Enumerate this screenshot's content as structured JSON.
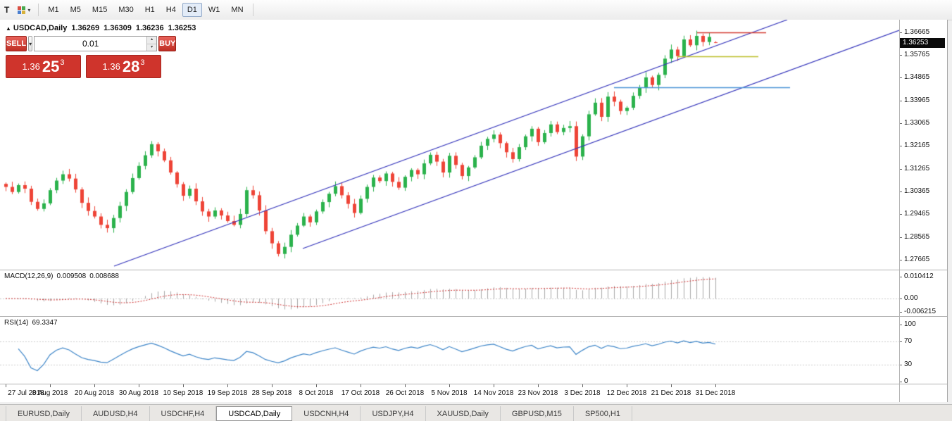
{
  "toolbar": {
    "left_button": "T",
    "timeframes": [
      "M1",
      "M5",
      "M15",
      "M30",
      "H1",
      "H4",
      "D1",
      "W1",
      "MN"
    ],
    "active_timeframe": "D1"
  },
  "chart": {
    "marker": "▲",
    "symbol": "USDCAD,Daily",
    "ohlc": {
      "open": "1.36269",
      "high": "1.36309",
      "low": "1.36236",
      "close": "1.36253"
    }
  },
  "trade_panel": {
    "sell_label": "SELL",
    "buy_label": "BUY",
    "volume": "0.01",
    "sell_price_main": "1.36",
    "sell_price_pips": "25",
    "sell_price_sup": "3",
    "buy_price_main": "1.36",
    "buy_price_pips": "28",
    "buy_price_sup": "3"
  },
  "chart_data": {
    "type": "candlestick",
    "title": "USDCAD,Daily",
    "current_price": "1.36253",
    "price_range": [
      1.2728,
      1.3716
    ],
    "wick": 0.0016,
    "x_labels": [
      "27 Jul 2018",
      "8 Aug 2018",
      "20 Aug 2018",
      "30 Aug 2018",
      "10 Sep 2018",
      "19 Sep 2018",
      "28 Sep 2018",
      "8 Oct 2018",
      "17 Oct 2018",
      "26 Oct 2018",
      "5 Nov 2018",
      "14 Nov 2018",
      "23 Nov 2018",
      "3 Dec 2018",
      "12 Dec 2018",
      "21 Dec 2018",
      "31 Dec 2018"
    ],
    "label_step": 7,
    "closes": [
      1.3055,
      1.3035,
      1.3062,
      1.3048,
      1.2996,
      1.2968,
      1.299,
      1.3042,
      1.308,
      1.3105,
      1.3088,
      1.3045,
      1.2992,
      1.296,
      1.2938,
      1.2905,
      1.2892,
      1.2932,
      1.298,
      1.3035,
      1.309,
      1.3138,
      1.318,
      1.3224,
      1.3196,
      1.316,
      1.3112,
      1.3066,
      1.302,
      1.3048,
      1.2998,
      1.2958,
      1.2938,
      1.2962,
      1.2942,
      1.292,
      1.2905,
      1.2948,
      1.3042,
      1.3022,
      1.2962,
      1.288,
      1.2832,
      1.279,
      1.2818,
      1.2866,
      1.2902,
      1.2938,
      1.2915,
      1.2958,
      1.2995,
      1.3028,
      1.3058,
      1.3022,
      1.2988,
      1.2952,
      1.3008,
      1.3055,
      1.3092,
      1.3078,
      1.3108,
      1.3075,
      1.3052,
      1.3095,
      1.3122,
      1.3105,
      1.3148,
      1.3182,
      1.3155,
      1.3112,
      1.3178,
      1.3142,
      1.3098,
      1.3132,
      1.3172,
      1.3218,
      1.3245,
      1.3262,
      1.3228,
      1.3192,
      1.3165,
      1.3212,
      1.3255,
      1.3285,
      1.3232,
      1.3268,
      1.3302,
      1.3272,
      1.3288,
      1.3295,
      1.3175,
      1.3255,
      1.3342,
      1.3388,
      1.3332,
      1.3412,
      1.3392,
      1.3355,
      1.3368,
      1.3415,
      1.3448,
      1.3488,
      1.3458,
      1.3498,
      1.3562,
      1.3598,
      1.3572,
      1.3638,
      1.3615,
      1.3652,
      1.3628,
      1.3648,
      1.36253
    ],
    "y_ticks": [
      "1.36665",
      "1.35765",
      "1.34865",
      "1.33965",
      "1.33065",
      "1.32165",
      "1.31265",
      "1.30365",
      "1.29465",
      "1.28565",
      "1.27665"
    ],
    "overlays": {
      "channel_lines": [
        {
          "x1": 162,
          "y1": 350,
          "x2": 1118,
          "y2": 0
        },
        {
          "x1": 430,
          "y1": 325,
          "x2": 1277,
          "y2": 15
        }
      ],
      "h_segments": [
        {
          "price": 1.3666,
          "x1": 990,
          "x2": 1088,
          "color": "#d43a31"
        },
        {
          "price": 1.357,
          "x1": 962,
          "x2": 1077,
          "color": "#bdbe29"
        },
        {
          "price": 1.345,
          "x1": 872,
          "x2": 1122,
          "color": "#4a94d6"
        }
      ]
    },
    "macd": {
      "label": "MACD(12,26,9)",
      "value": "0.009508",
      "signal": "0.008688",
      "axis_ticks": [
        "0.010412",
        "0.00",
        "-0.006215"
      ],
      "scale_max": 0.010412
    },
    "rsi": {
      "label": "RSI(14)",
      "value": "69.3347",
      "axis_ticks": [
        "100",
        "70",
        "30",
        "0"
      ],
      "levels": [
        70,
        30
      ]
    },
    "colors": {
      "bull": "#2bb24c",
      "bear": "#ee4437",
      "trend": "#3434bb",
      "macd_hist": "#a8a8a8",
      "macd_signal": "#cf3333",
      "rsi_line": "#3d85c8"
    }
  },
  "tabs": {
    "active": "USDCAD,Daily",
    "items": [
      {
        "label": "EURUSD,Daily"
      },
      {
        "label": "AUDUSD,H4"
      },
      {
        "label": "USDCHF,H4"
      },
      {
        "label": "USDCAD,Daily"
      },
      {
        "label": "USDCNH,H4"
      },
      {
        "label": "USDJPY,H4"
      },
      {
        "label": "XAUUSD,Daily"
      },
      {
        "label": "GBPUSD,M15"
      },
      {
        "label": "SP500,H1"
      }
    ]
  }
}
